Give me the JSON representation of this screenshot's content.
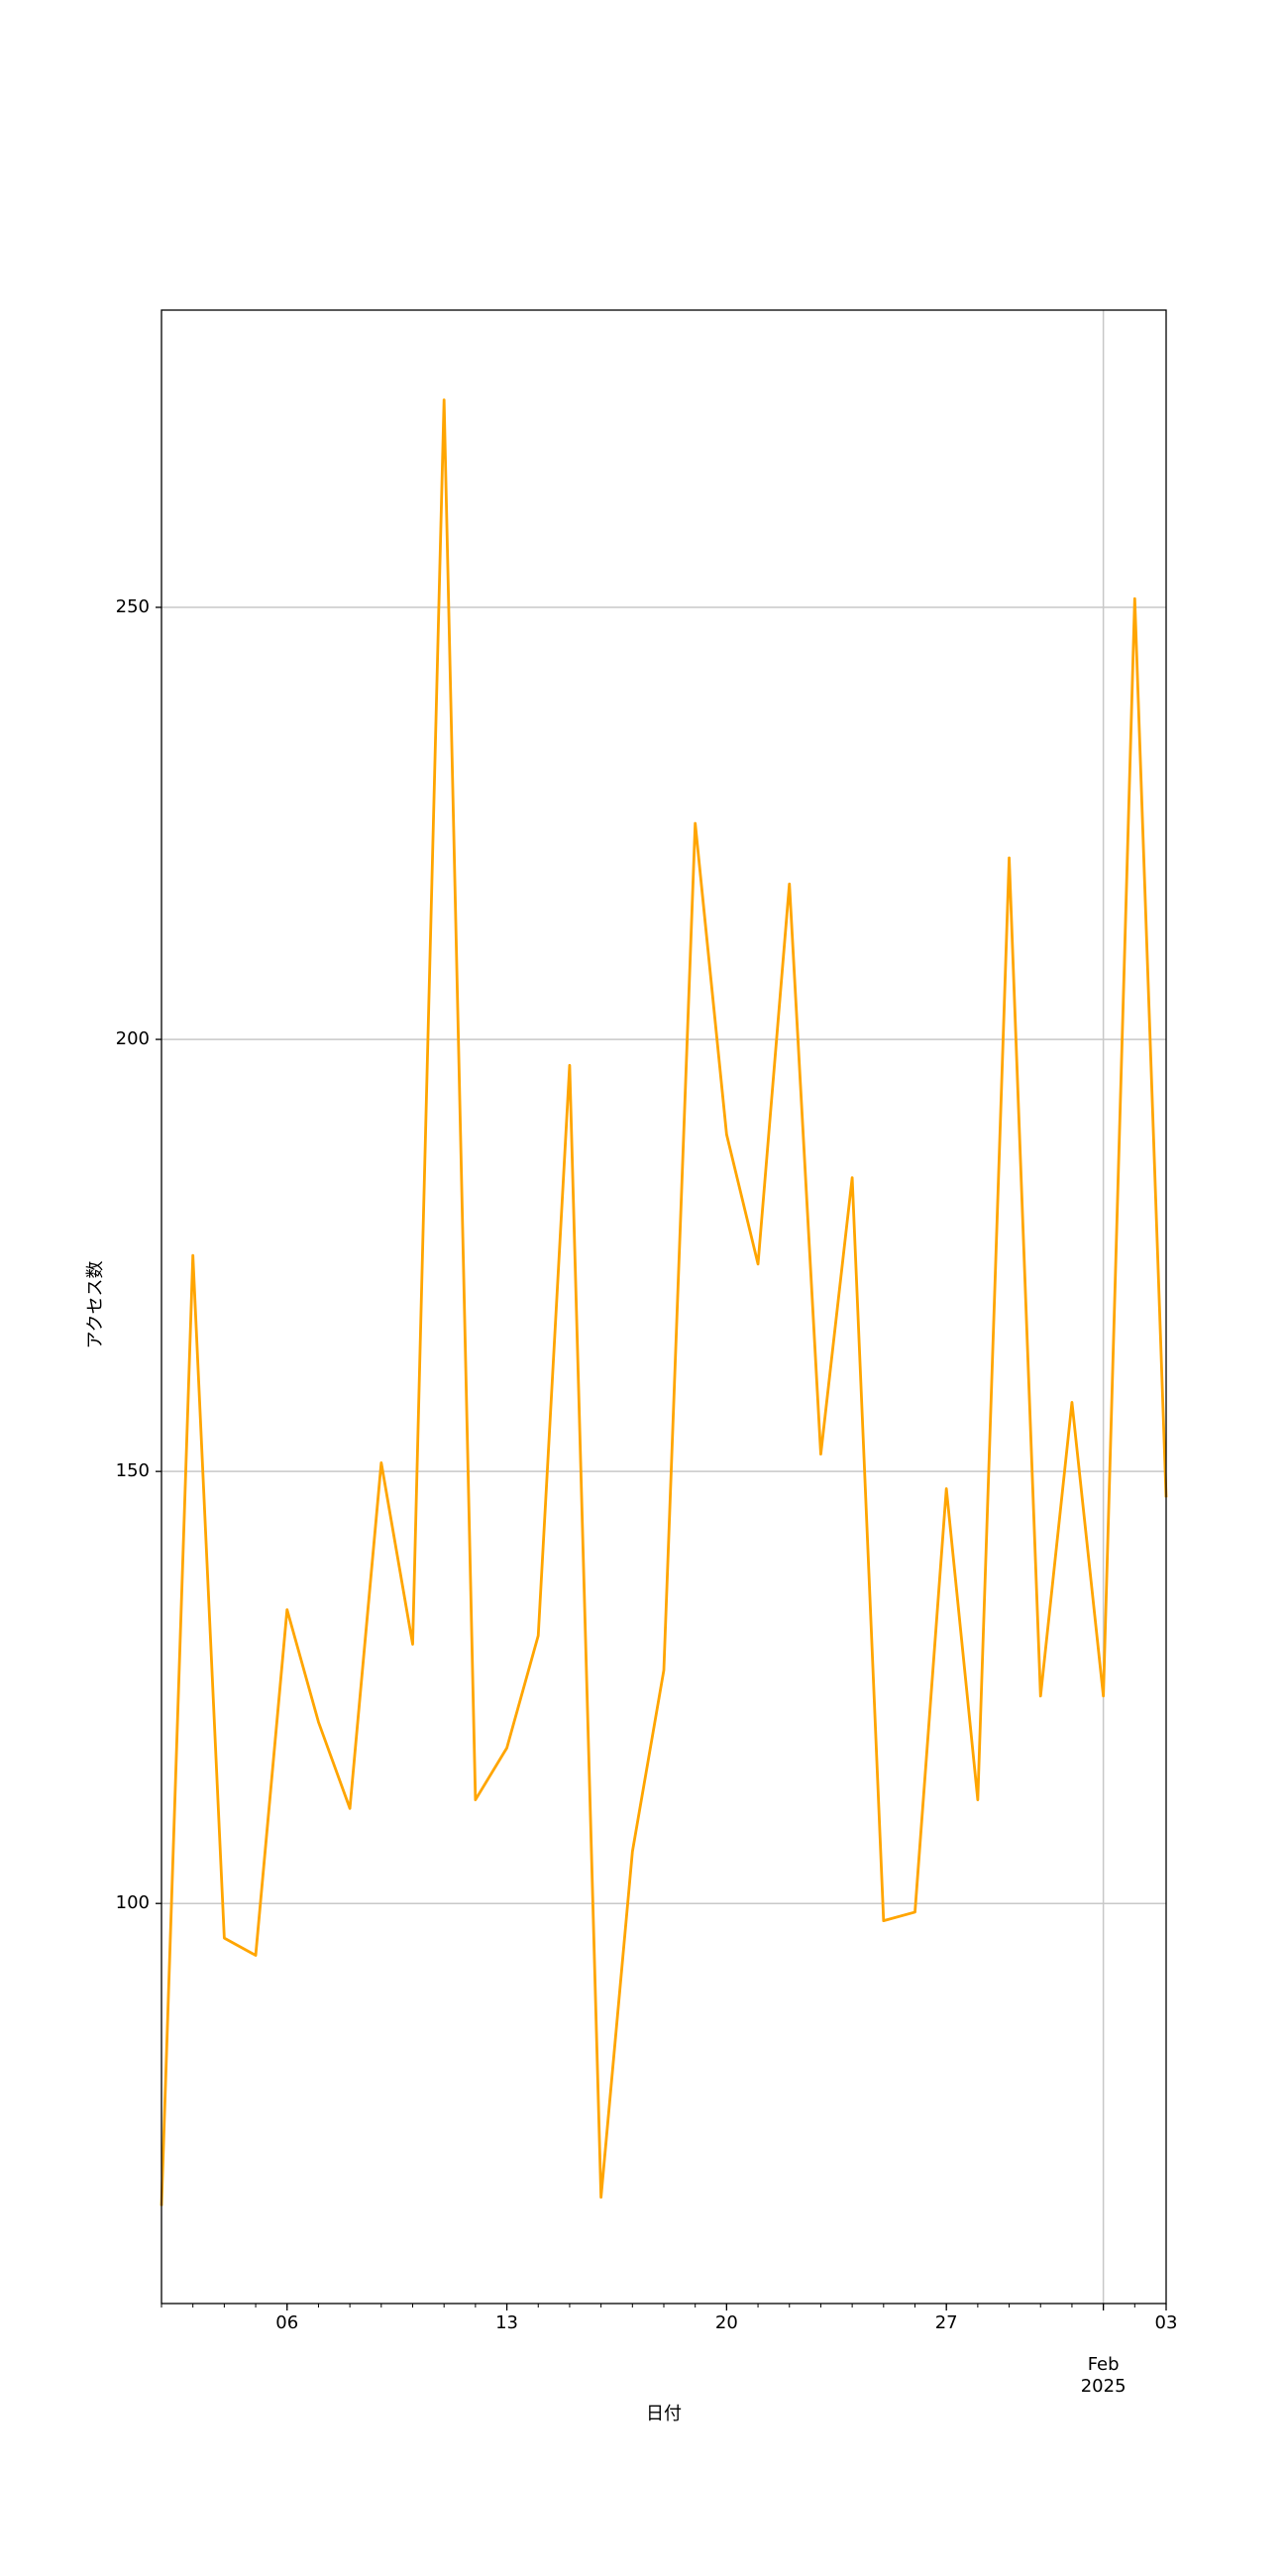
{
  "chart_data": {
    "type": "line",
    "x_label": "日付",
    "y_label": "アクセス数",
    "x": [
      "2025-01-02",
      "2025-01-03",
      "2025-01-04",
      "2025-01-05",
      "2025-01-06",
      "2025-01-07",
      "2025-01-08",
      "2025-01-09",
      "2025-01-10",
      "2025-01-11",
      "2025-01-12",
      "2025-01-13",
      "2025-01-14",
      "2025-01-15",
      "2025-01-16",
      "2025-01-17",
      "2025-01-18",
      "2025-01-19",
      "2025-01-20",
      "2025-01-21",
      "2025-01-22",
      "2025-01-23",
      "2025-01-24",
      "2025-01-25",
      "2025-01-26",
      "2025-01-27",
      "2025-01-28",
      "2025-01-29",
      "2025-01-30",
      "2025-01-31",
      "2025-02-01",
      "2025-02-02",
      "2025-02-03"
    ],
    "series": [
      {
        "color": "#ffa500",
        "values": [
          65,
          175,
          96,
          94,
          134,
          121,
          111,
          151,
          130,
          274,
          112,
          118,
          131,
          197,
          66,
          106,
          127,
          225,
          189,
          174,
          218,
          152,
          184,
          98,
          99,
          148,
          112,
          221,
          124,
          158,
          124,
          251,
          147
        ]
      }
    ],
    "xlim": [
      "2025-01-02",
      "2025-02-03"
    ],
    "xticks": [
      {
        "value": "2025-01-06",
        "label": "06"
      },
      {
        "value": "2025-01-13",
        "label": "13"
      },
      {
        "value": "2025-01-20",
        "label": "20"
      },
      {
        "value": "2025-01-27",
        "label": "27"
      },
      {
        "value": "2025-02-01",
        "label": "Feb",
        "sublabel": "2025",
        "grid": true
      },
      {
        "value": "2025-02-03",
        "label": "03"
      }
    ],
    "ylim": [
      53.7,
      284.4
    ],
    "yticks": [
      100,
      150,
      200,
      250
    ],
    "grid": true
  }
}
